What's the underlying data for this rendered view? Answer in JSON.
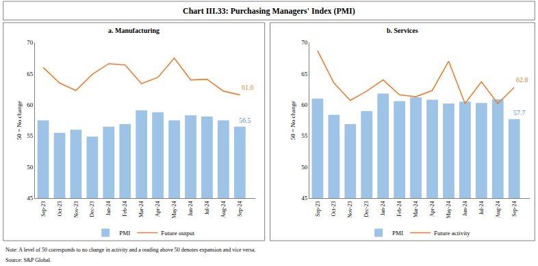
{
  "title": "Chart III.33: Purchasing Managers' Index (PMI)",
  "note": "Note: A level of 50 corresponds to no change in activity and a reading above 50 denotes expansion and vice versa.",
  "source": "Source: S&P Global.",
  "chart_data": [
    {
      "type": "bar",
      "title": "a. Manufacturing",
      "ylabel": "50 = No change",
      "categories": [
        "Sep-23",
        "Oct-23",
        "Nov-23",
        "Dec-23",
        "Jan-24",
        "Feb-24",
        "Mar-24",
        "Apr-24",
        "May-24",
        "Jun-24",
        "Jul-24",
        "Aug-24",
        "Sep-24"
      ],
      "ylim": [
        45,
        70
      ],
      "yticks": [
        45,
        50,
        55,
        60,
        65,
        70
      ],
      "legend": "bottom",
      "series": [
        {
          "name": "PMI",
          "type": "bar",
          "color": "#9dc3e6",
          "values": [
            57.5,
            55.5,
            56.0,
            54.9,
            56.5,
            56.9,
            59.1,
            58.8,
            57.5,
            58.3,
            58.1,
            57.5,
            56.5
          ],
          "value_labels": [
            null,
            null,
            null,
            null,
            null,
            null,
            null,
            null,
            null,
            null,
            null,
            null,
            "56.5"
          ]
        },
        {
          "name": "Future output",
          "type": "line",
          "color": "#ed7d31",
          "values": [
            66.0,
            63.5,
            62.3,
            64.9,
            66.6,
            66.4,
            63.4,
            64.4,
            67.5,
            64.0,
            64.1,
            62.2,
            61.6
          ],
          "value_labels": [
            null,
            null,
            null,
            null,
            null,
            null,
            null,
            null,
            null,
            null,
            null,
            null,
            "61.6"
          ]
        }
      ]
    },
    {
      "type": "bar",
      "title": "b. Services",
      "ylabel": "50 = No change",
      "categories": [
        "Sep-23",
        "Oct-23",
        "Nov-23",
        "Dec-23",
        "Jan-24",
        "Feb-24",
        "Mar-24",
        "Apr-24",
        "May-24",
        "Jun-24",
        "Jul-24",
        "Aug-24",
        "Sep-24"
      ],
      "ylim": [
        45,
        70
      ],
      "yticks": [
        45,
        50,
        55,
        60,
        65,
        70
      ],
      "legend": "bottom",
      "series": [
        {
          "name": "PMI",
          "type": "bar",
          "color": "#9dc3e6",
          "values": [
            61.0,
            58.4,
            56.9,
            59.0,
            61.8,
            60.6,
            61.2,
            60.8,
            60.2,
            60.5,
            60.3,
            60.9,
            57.7
          ],
          "value_labels": [
            null,
            null,
            null,
            null,
            null,
            null,
            null,
            null,
            null,
            null,
            null,
            null,
            "57.7"
          ]
        },
        {
          "name": "Future activity",
          "type": "line",
          "color": "#ed7d31",
          "values": [
            68.7,
            63.5,
            60.7,
            62.2,
            64.0,
            61.6,
            61.3,
            62.3,
            67.0,
            60.2,
            63.7,
            60.2,
            62.8
          ],
          "value_labels": [
            null,
            null,
            null,
            null,
            null,
            null,
            null,
            null,
            null,
            null,
            null,
            null,
            "62.8"
          ]
        }
      ]
    }
  ]
}
